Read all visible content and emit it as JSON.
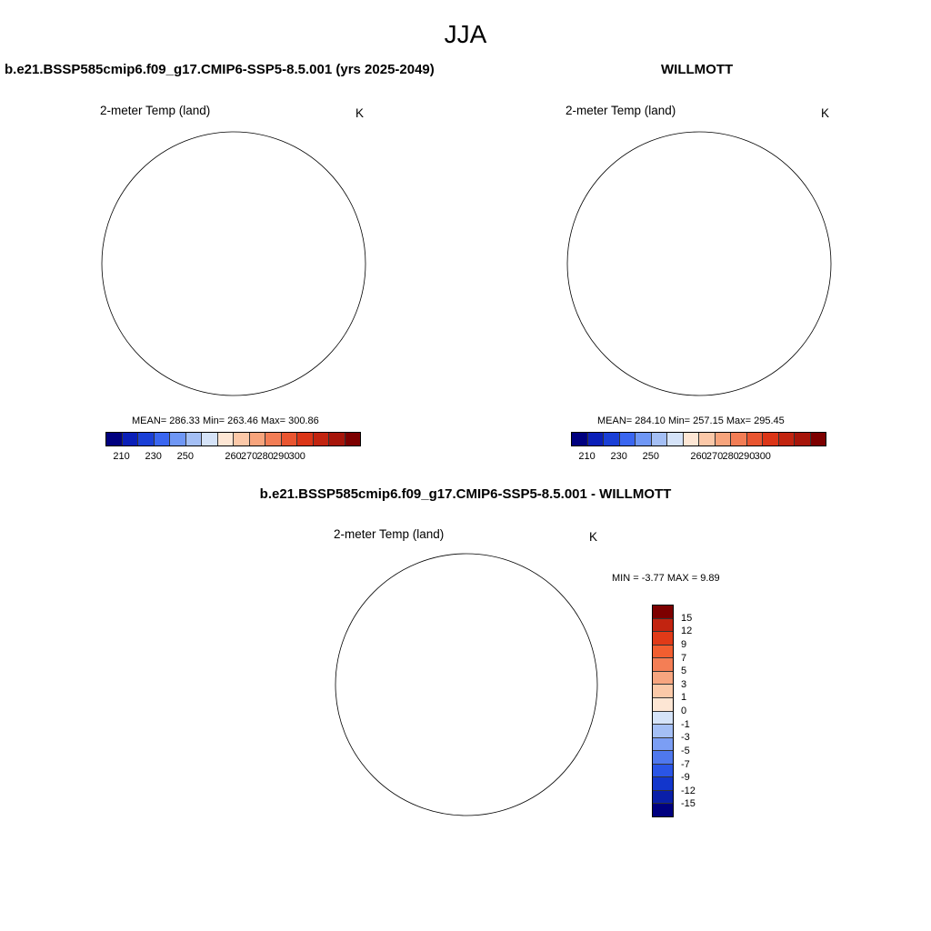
{
  "season": "JJA",
  "panels": [
    {
      "title": "b.e21.BSSP585cmip6.f09_g17.CMIP6-SSP5-8.5.001 (yrs 2025-2049)",
      "variable": "2-meter Temp (land)",
      "units": "K",
      "stats": "MEAN= 286.33  Min= 263.46  Max= 300.86"
    },
    {
      "title": "WILLMOTT",
      "variable": "2-meter Temp (land)",
      "units": "K",
      "stats": "MEAN= 284.10  Min= 257.15  Max= 295.45"
    },
    {
      "title": "b.e21.BSSP585cmip6.f09_g17.CMIP6-SSP5-8.5.001 - WILLMOTT",
      "variable": "2-meter Temp (land)",
      "units": "K",
      "stats": "MIN =  -3.77 MAX =   9.89"
    }
  ],
  "abs_colorbar": {
    "colors": [
      "#00007f",
      "#0a1fb8",
      "#1a3fd6",
      "#3a66f0",
      "#6f97f5",
      "#a4bff5",
      "#d5e3f8",
      "#fde6d4",
      "#fbc8a8",
      "#f7a47c",
      "#f27d55",
      "#e95530",
      "#db3517",
      "#c22410",
      "#a7150a",
      "#7d0000"
    ],
    "labels": [
      "210",
      "230",
      "250",
      "260",
      "270",
      "280",
      "290",
      "300"
    ]
  },
  "diff_colorbar": {
    "colors": [
      "#7d0000",
      "#c22410",
      "#e03a18",
      "#f25e30",
      "#f47e55",
      "#f7a57f",
      "#fbc9a8",
      "#fde6d4",
      "#d5e3f8",
      "#a4bff5",
      "#7b9ef4",
      "#4f78ee",
      "#2a55e6",
      "#1236cc",
      "#0a1fa8",
      "#00007f"
    ],
    "labels": [
      "15",
      "12",
      "9",
      "7",
      "5",
      "3",
      "1",
      "0",
      "-1",
      "-3",
      "-5",
      "-7",
      "-9",
      "-12",
      "-15"
    ]
  },
  "colors": {
    "warm": "#e8491f",
    "warm_light": "#f6a382",
    "cool": "#b9cdf4",
    "ocean": "#ffffff"
  }
}
